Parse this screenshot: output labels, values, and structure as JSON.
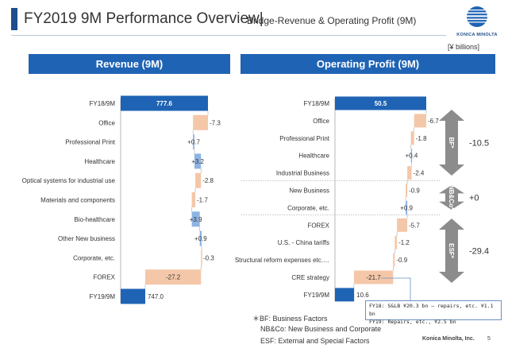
{
  "header": {
    "title": "FY2019 9M Performance Overview",
    "separator": "|",
    "subtitle": "Bridge-Revenue & Operating Profit (9M)",
    "logo_text": "KONICA MINOLTA",
    "unit": "[¥ billions]"
  },
  "chart_data": [
    {
      "type": "bar",
      "subtype": "waterfall",
      "title": "Revenue (9M)",
      "categories": [
        "FY18/9M",
        "Office",
        "Professional Print",
        "Healthcare",
        "Optical systems for industrial use",
        "Materials and components",
        "Bio-healthcare",
        "Other New business",
        "Corporate, etc.",
        "FOREX",
        "FY19/9M"
      ],
      "labels": [
        "777.6",
        "-7.3",
        "+0.7",
        "+3.2",
        "-2.8",
        "-1.7",
        "+3.9",
        "+0.9",
        "-0.3",
        "-27.2",
        "747.0"
      ],
      "values": [
        777.6,
        -7.3,
        0.7,
        3.2,
        -2.8,
        -1.7,
        3.9,
        0.9,
        -0.3,
        -27.2,
        747.0
      ],
      "kinds": [
        "total",
        "delta",
        "delta",
        "delta",
        "delta",
        "delta",
        "delta",
        "delta",
        "delta",
        "delta",
        "total"
      ],
      "colors": {
        "total": "#1f63b4",
        "increase": "#8db4e2",
        "decrease": "#f4c7a8"
      }
    },
    {
      "type": "bar",
      "subtype": "waterfall",
      "title": "Operating Profit (9M)",
      "categories": [
        "FY18/9M",
        "Office",
        "Professional Print",
        "Healthcare",
        "Industrial Business",
        "New Business",
        "Corporate, etc.",
        "FOREX",
        "U.S. - China tariffs",
        "Structural reform expenses etc.…",
        "CRE strategy",
        "FY19/9M"
      ],
      "labels": [
        "50.5",
        "-6.7",
        "-1.8",
        "+0.4",
        "-2.4",
        "-0.9",
        "+0.9",
        "-5.7",
        "-1.2",
        "-0.9",
        "-21.7",
        "10.6"
      ],
      "values": [
        50.5,
        -6.7,
        -1.8,
        0.4,
        -2.4,
        -0.9,
        0.9,
        -5.7,
        -1.2,
        -0.9,
        -21.7,
        10.6
      ],
      "kinds": [
        "total",
        "delta",
        "delta",
        "delta",
        "delta",
        "delta",
        "delta",
        "delta",
        "delta",
        "delta",
        "delta",
        "total"
      ],
      "groups": [
        {
          "label": "BF*",
          "total": "-10.5"
        },
        {
          "label": "NB&Co*",
          "total": "+0"
        },
        {
          "label": "ESF*",
          "total": "-29.4"
        }
      ],
      "colors": {
        "total": "#1f63b4",
        "increase": "#8db4e2",
        "decrease": "#f4c7a8",
        "bracket": "#8c8c8c"
      }
    }
  ],
  "legend": {
    "bf": "＊BF: Business Factors",
    "nbco": "NB&Co: New Business and Corporate",
    "esf": "ESF: External and Special Factors"
  },
  "footnote": {
    "line1": "FY18: S&LB ¥20.3 bn –  repairs, etc. ¥1.1 bn",
    "line2": "FY19: Repairs, etc., ¥2.5 bn"
  },
  "footer": {
    "company": "Konica Minolta, Inc.",
    "page": "5"
  }
}
